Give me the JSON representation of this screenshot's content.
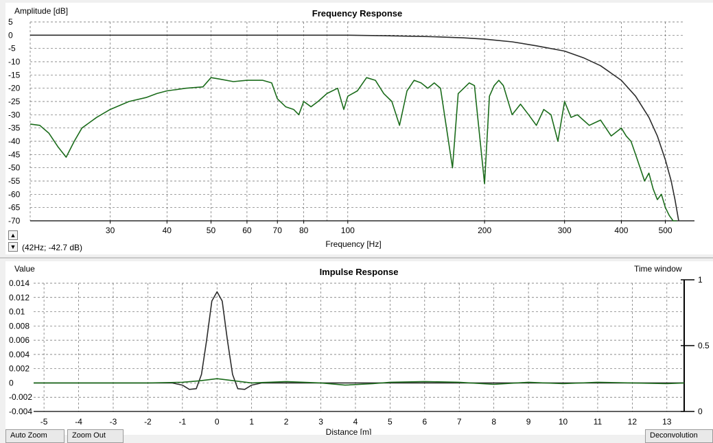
{
  "chart_data": [
    {
      "type": "line",
      "title": "Frequency Response",
      "ylabel": "Amplitude [dB]",
      "xlabel": "Frequency [Hz]",
      "x_scale": "log",
      "xlim": [
        20,
        550
      ],
      "ylim": [
        -70,
        5
      ],
      "x_ticks": [
        30,
        40,
        50,
        60,
        70,
        80,
        100,
        200,
        300,
        400,
        500
      ],
      "y_ticks": [
        5,
        0,
        -5,
        -10,
        -15,
        -20,
        -25,
        -30,
        -35,
        -40,
        -45,
        -50,
        -55,
        -60,
        -65,
        -70
      ],
      "grid": true,
      "series": [
        {
          "color": "#1a6b1a",
          "x": [
            20,
            21,
            22,
            23,
            24,
            25,
            26,
            28,
            30,
            33,
            36,
            38,
            40,
            44,
            48,
            50,
            52,
            56,
            60,
            65,
            68,
            70,
            73,
            76,
            78,
            80,
            83,
            86,
            90,
            95,
            98,
            100,
            105,
            110,
            115,
            120,
            125,
            130,
            135,
            140,
            145,
            150,
            155,
            160,
            170,
            175,
            180,
            185,
            190,
            200,
            205,
            210,
            215,
            220,
            230,
            240,
            250,
            260,
            270,
            280,
            290,
            300,
            310,
            320,
            330,
            340,
            350,
            360,
            380,
            400,
            410,
            420,
            430,
            440,
            450,
            460,
            470,
            480,
            490,
            500,
            510,
            520,
            530
          ],
          "y": [
            -33.5,
            -34,
            -37,
            -42,
            -46,
            -40,
            -35,
            -31,
            -28,
            -25,
            -23.5,
            -22,
            -21,
            -20,
            -19.5,
            -16,
            -16.5,
            -17.5,
            -17,
            -17,
            -18,
            -24,
            -27,
            -28,
            -30,
            -25,
            -27,
            -25,
            -22,
            -20,
            -28,
            -23,
            -21,
            -16,
            -17,
            -22,
            -25,
            -34,
            -21,
            -17,
            -18,
            -20,
            -18,
            -20,
            -50,
            -22,
            -20,
            -18,
            -19,
            -56,
            -23,
            -19,
            -17,
            -19,
            -30,
            -26,
            -30,
            -34,
            -28,
            -30,
            -40,
            -25,
            -31,
            -30,
            -32,
            -34,
            -33,
            -32,
            -38,
            -35,
            -38,
            -40,
            -45,
            -50,
            -55,
            -52,
            -58,
            -62,
            -60,
            -65,
            -68,
            -70,
            -70
          ]
        },
        {
          "color": "#2b2b2b",
          "x": [
            20,
            30,
            50,
            80,
            100,
            120,
            150,
            180,
            200,
            230,
            260,
            300,
            330,
            360,
            400,
            430,
            460,
            480,
            500,
            515,
            525,
            535
          ],
          "y": [
            0,
            0,
            0,
            0,
            0,
            -0.2,
            -0.5,
            -1,
            -1.5,
            -2.5,
            -4,
            -6,
            -8.5,
            -11.5,
            -17,
            -23,
            -31,
            -38,
            -47,
            -55,
            -62,
            -70
          ]
        }
      ],
      "readout": "(42Hz; -42.7 dB)"
    },
    {
      "type": "line",
      "title": "Impulse Response",
      "ylabel": "Value",
      "xlabel": "Distance [m]",
      "xlim": [
        -5.3,
        13.5
      ],
      "ylim": [
        -0.004,
        0.014
      ],
      "x_ticks": [
        -5,
        -4,
        -3,
        -2,
        -1,
        0,
        1,
        2,
        3,
        4,
        5,
        6,
        7,
        8,
        9,
        10,
        11,
        12,
        13
      ],
      "y_ticks": [
        0.014,
        0.012,
        0.01,
        0.008,
        0.006,
        0.004,
        0.002,
        0,
        -0.002,
        -0.004
      ],
      "y2_label": "Time window",
      "y2_ticks": [
        "1",
        "0.5",
        "0"
      ],
      "grid": true,
      "series": [
        {
          "color": "#2b2b2b",
          "x": [
            -5.3,
            -1.3,
            -1.0,
            -0.8,
            -0.6,
            -0.45,
            -0.3,
            -0.15,
            0,
            0.15,
            0.3,
            0.45,
            0.6,
            0.8,
            1.0,
            1.3,
            2,
            3,
            4,
            5,
            6,
            7,
            8,
            9,
            10,
            11,
            12,
            13,
            13.5
          ],
          "y": [
            0,
            0,
            -0.0003,
            -0.0009,
            -0.0008,
            0.0012,
            0.006,
            0.0115,
            0.0128,
            0.0115,
            0.006,
            0.0012,
            -0.0008,
            -0.0009,
            -0.0003,
            0,
            0,
            0,
            0,
            0,
            0,
            0,
            0,
            0,
            0,
            0,
            0,
            0,
            0
          ]
        },
        {
          "color": "#1a6b1a",
          "x": [
            -5.3,
            -2,
            -1,
            -0.5,
            0,
            0.5,
            1,
            1.5,
            2,
            3,
            3.7,
            4.5,
            5,
            6,
            7,
            8,
            9,
            10,
            11,
            12,
            13,
            13.5
          ],
          "y": [
            0,
            0,
            0.0001,
            0.0003,
            0.0006,
            0.0003,
            0,
            0.0001,
            0.0002,
            0,
            -0.0003,
            -0.0001,
            0.0001,
            0.0002,
            0.0001,
            -0.0002,
            0.0001,
            -0.0001,
            0.0001,
            0,
            -0.0001,
            0
          ]
        }
      ]
    }
  ],
  "controls": {
    "scroll_up": "▲",
    "scroll_down": "▼",
    "bottom_buttons": [
      "Auto Zoom",
      "Zoom Out",
      "Deconvolution"
    ]
  }
}
